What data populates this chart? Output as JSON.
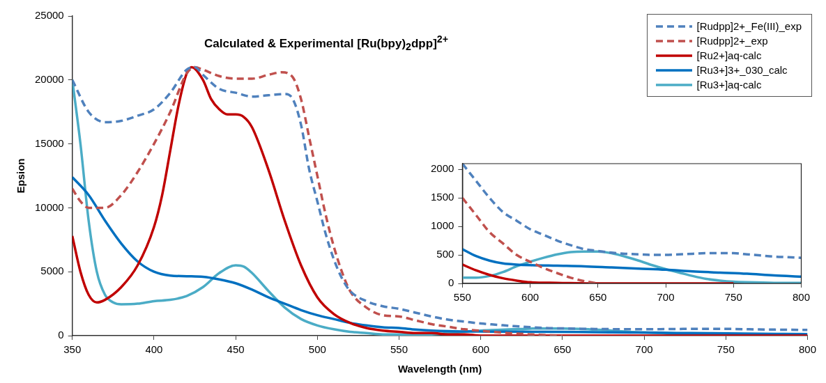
{
  "chart_data": [
    {
      "type": "line",
      "title": "Calculated & Experimental [Ru(bpy)$_{2}$dpp]$^{2+}$",
      "xlabel": "Wavelength (nm)",
      "ylabel": "Epsion",
      "xlim": [
        350,
        800
      ],
      "xticks": [
        350,
        400,
        450,
        500,
        550,
        600,
        650,
        700,
        750,
        800
      ],
      "ylim": [
        0,
        25000
      ],
      "yticks": [
        0,
        5000,
        10000,
        15000,
        20000,
        25000
      ],
      "grid": false,
      "legend": "top right",
      "marker": "none",
      "series": [
        {
          "name": "[Rudpp]2+_Fe(III)_exp",
          "color": "#4f81bd",
          "line_style": "dashed",
          "x": [
            350,
            360,
            370,
            380,
            390,
            400,
            410,
            420,
            425,
            430,
            440,
            450,
            460,
            470,
            480,
            485,
            490,
            495,
            500,
            505,
            510,
            515,
            520,
            530,
            540,
            550,
            560,
            570,
            580,
            590,
            600,
            610,
            620,
            630,
            640,
            650,
            660,
            670,
            680,
            690,
            700,
            710,
            720,
            730,
            740,
            750,
            760,
            770,
            780,
            790,
            800
          ],
          "values": [
            20000,
            17500,
            16700,
            16800,
            17200,
            17700,
            19000,
            20800,
            21000,
            20400,
            19300,
            19000,
            18700,
            18800,
            18900,
            18500,
            16500,
            13000,
            10500,
            8000,
            6000,
            4500,
            3500,
            2700,
            2300,
            2100,
            1800,
            1500,
            1250,
            1100,
            950,
            850,
            750,
            670,
            600,
            570,
            540,
            520,
            510,
            500,
            500,
            510,
            520,
            530,
            530,
            530,
            510,
            490,
            470,
            460,
            450
          ]
        },
        {
          "name": "[Rudpp]2+_exp",
          "color": "#c0504d",
          "line_style": "dashed",
          "x": [
            350,
            355,
            360,
            370,
            380,
            390,
            400,
            410,
            420,
            425,
            430,
            440,
            450,
            460,
            470,
            478,
            485,
            490,
            495,
            500,
            505,
            510,
            515,
            520,
            530,
            540,
            550,
            560,
            570,
            580,
            590,
            600,
            610,
            620,
            630,
            640,
            650
          ],
          "values": [
            11500,
            10500,
            10000,
            10000,
            11000,
            12800,
            15000,
            17500,
            20500,
            21000,
            20800,
            20300,
            20100,
            20100,
            20400,
            20600,
            20200,
            18500,
            15500,
            12500,
            9500,
            7000,
            5000,
            3500,
            2200,
            1600,
            1500,
            1200,
            900,
            700,
            500,
            380,
            270,
            180,
            100,
            40,
            0
          ]
        },
        {
          "name": "[Ru2+]aq-calc",
          "color": "#c00000",
          "line_style": "solid",
          "x": [
            350,
            355,
            360,
            365,
            370,
            380,
            390,
            400,
            405,
            410,
            415,
            420,
            423,
            430,
            435,
            440,
            445,
            450,
            455,
            460,
            470,
            480,
            490,
            500,
            510,
            520,
            530,
            540,
            550,
            560,
            570,
            580,
            590,
            600,
            620,
            650,
            700,
            750,
            800
          ],
          "values": [
            7800,
            5000,
            3200,
            2600,
            2800,
            3800,
            5500,
            8500,
            11000,
            14500,
            18000,
            20500,
            21000,
            20000,
            18500,
            17700,
            17300,
            17300,
            17100,
            16300,
            13000,
            9000,
            5500,
            3000,
            1700,
            1000,
            600,
            400,
            300,
            200,
            200,
            100,
            100,
            0,
            0,
            0,
            0,
            0,
            0
          ]
        },
        {
          "name": "[Ru3+]3+_030_calc",
          "color": "#0070c0",
          "line_style": "solid",
          "x": [
            350,
            360,
            370,
            380,
            390,
            400,
            410,
            420,
            430,
            440,
            450,
            460,
            470,
            480,
            490,
            500,
            510,
            520,
            530,
            540,
            550,
            560,
            570,
            580,
            590,
            600,
            620,
            640,
            660,
            680,
            700,
            720,
            740,
            760,
            780,
            800
          ],
          "values": [
            12400,
            11000,
            9000,
            7200,
            5800,
            5000,
            4700,
            4650,
            4600,
            4400,
            4100,
            3600,
            3000,
            2500,
            2000,
            1600,
            1300,
            1000,
            800,
            650,
            600,
            480,
            400,
            350,
            330,
            320,
            310,
            300,
            280,
            260,
            240,
            210,
            190,
            170,
            140,
            120
          ]
        },
        {
          "name": "[Ru3+]aq-calc",
          "color": "#4bacc6",
          "line_style": "solid",
          "x": [
            350,
            355,
            360,
            365,
            370,
            375,
            380,
            390,
            400,
            410,
            420,
            430,
            440,
            450,
            455,
            460,
            470,
            480,
            490,
            500,
            510,
            520,
            530,
            540,
            550,
            560,
            570,
            580,
            590,
            600,
            610,
            620,
            630,
            640,
            650,
            660,
            670,
            680,
            690,
            700,
            710,
            720,
            730,
            740,
            750,
            760,
            780,
            800
          ],
          "values": [
            20000,
            15000,
            9000,
            5000,
            3200,
            2600,
            2450,
            2500,
            2700,
            2800,
            3100,
            3800,
            4900,
            5500,
            5400,
            4900,
            3500,
            2200,
            1300,
            800,
            500,
            300,
            200,
            100,
            100,
            100,
            100,
            200,
            300,
            400,
            450,
            500,
            550,
            560,
            560,
            530,
            470,
            400,
            300,
            250,
            200,
            100,
            100,
            50,
            50,
            0,
            0,
            0
          ]
        }
      ]
    },
    {
      "type": "line",
      "xlim": [
        550,
        800
      ],
      "xticks": [
        550,
        600,
        650,
        700,
        750,
        800
      ],
      "ylim": [
        0,
        2100
      ],
      "yticks": [
        0,
        500,
        1000,
        1500,
        2000
      ],
      "grid": false,
      "legend": false,
      "marker": "none",
      "series": [
        {
          "color": "#4f81bd",
          "line_style": "dashed",
          "x": [
            550,
            560,
            570,
            580,
            590,
            600,
            610,
            620,
            630,
            640,
            650,
            660,
            670,
            680,
            690,
            700,
            710,
            720,
            730,
            740,
            750,
            760,
            770,
            780,
            790,
            800
          ],
          "values": [
            2100,
            1800,
            1500,
            1250,
            1100,
            950,
            850,
            750,
            670,
            600,
            570,
            540,
            520,
            510,
            500,
            500,
            510,
            520,
            530,
            530,
            530,
            510,
            490,
            470,
            460,
            450
          ]
        },
        {
          "color": "#c0504d",
          "line_style": "dashed",
          "x": [
            550,
            560,
            570,
            580,
            590,
            600,
            610,
            620,
            630,
            640,
            650
          ],
          "values": [
            1500,
            1200,
            900,
            700,
            500,
            380,
            270,
            180,
            100,
            40,
            0
          ]
        },
        {
          "color": "#c00000",
          "line_style": "solid",
          "x": [
            550,
            560,
            570,
            580,
            590,
            600,
            620,
            650,
            700,
            750
          ],
          "values": [
            330,
            230,
            150,
            90,
            50,
            20,
            10,
            0,
            0,
            0
          ]
        },
        {
          "color": "#0070c0",
          "line_style": "solid",
          "x": [
            550,
            560,
            570,
            580,
            590,
            600,
            620,
            640,
            660,
            680,
            700,
            720,
            740,
            760,
            780,
            800
          ],
          "values": [
            600,
            480,
            400,
            350,
            330,
            320,
            310,
            300,
            280,
            260,
            240,
            210,
            190,
            170,
            140,
            120
          ]
        },
        {
          "color": "#4bacc6",
          "line_style": "solid",
          "x": [
            550,
            560,
            570,
            580,
            590,
            600,
            610,
            620,
            630,
            640,
            650,
            660,
            670,
            680,
            690,
            700,
            710,
            720,
            730,
            740,
            750,
            760,
            780,
            800
          ],
          "values": [
            100,
            100,
            130,
            200,
            300,
            380,
            450,
            510,
            550,
            560,
            560,
            530,
            470,
            400,
            320,
            250,
            190,
            130,
            80,
            50,
            30,
            20,
            10,
            10
          ]
        }
      ]
    }
  ]
}
